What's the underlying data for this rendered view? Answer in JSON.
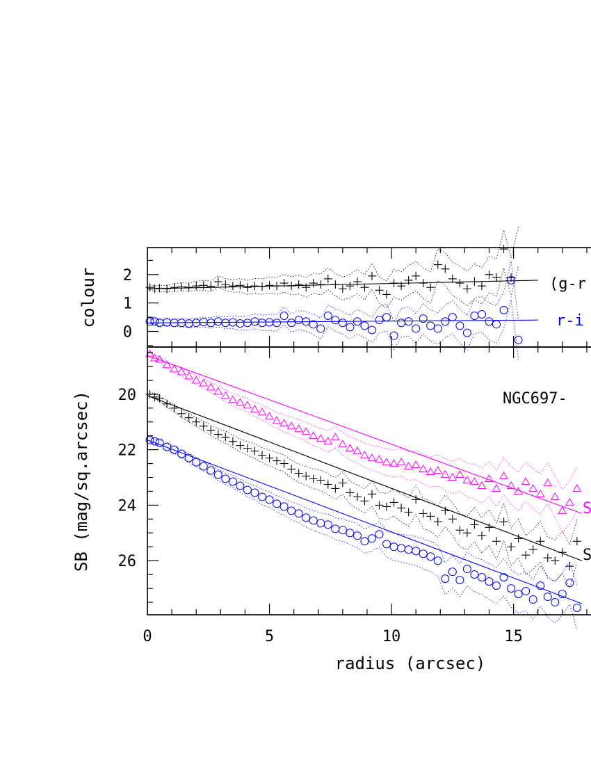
{
  "chart_data": {
    "type": "scatter",
    "xlabel": "radius (arcsec)",
    "xlim": [
      0,
      18.8
    ],
    "xticks": [
      0,
      5,
      10,
      15
    ],
    "top_panel": {
      "ylabel": "colour",
      "ylim": [
        -0.55,
        2.95
      ],
      "yticks": [
        0,
        1,
        2
      ],
      "labels": {
        "g_r": "(g-r",
        "r_i": "r-i"
      },
      "series": [
        {
          "name": "g-r",
          "color": "#000000",
          "marker": "cross",
          "fit": [
            [
              0,
              1.5
            ],
            [
              16,
              1.8
            ]
          ],
          "x": [
            0.1,
            0.3,
            0.5,
            0.8,
            1.1,
            1.4,
            1.7,
            2.0,
            2.3,
            2.6,
            2.9,
            3.2,
            3.5,
            3.8,
            4.1,
            4.4,
            4.7,
            5.0,
            5.3,
            5.6,
            5.9,
            6.2,
            6.5,
            6.8,
            7.1,
            7.4,
            7.7,
            8.0,
            8.3,
            8.6,
            8.9,
            9.2,
            9.5,
            9.8,
            10.1,
            10.4,
            10.7,
            11.0,
            11.3,
            11.6,
            11.9,
            12.2,
            12.5,
            12.8,
            13.1,
            13.4,
            13.7,
            14.0,
            14.3,
            14.6,
            14.9,
            15.2
          ],
          "y": [
            1.55,
            1.5,
            1.52,
            1.5,
            1.55,
            1.57,
            1.55,
            1.6,
            1.62,
            1.58,
            1.75,
            1.65,
            1.6,
            1.62,
            1.55,
            1.6,
            1.58,
            1.62,
            1.6,
            1.7,
            1.6,
            1.65,
            1.55,
            1.7,
            1.65,
            1.85,
            1.65,
            1.5,
            1.6,
            1.75,
            1.55,
            1.95,
            1.45,
            1.3,
            1.7,
            1.6,
            1.8,
            1.95,
            1.7,
            1.55,
            2.35,
            2.2,
            1.85,
            1.7,
            1.5,
            1.75,
            1.6,
            2.0,
            1.9,
            2.9,
            1.9,
            3.0
          ]
        },
        {
          "name": "r-i",
          "color": "#0000ff",
          "marker": "circle",
          "fit": [
            [
              0,
              0.3
            ],
            [
              16,
              0.4
            ]
          ],
          "x": [
            0.1,
            0.3,
            0.5,
            0.8,
            1.1,
            1.4,
            1.7,
            2.0,
            2.3,
            2.6,
            2.9,
            3.2,
            3.5,
            3.8,
            4.1,
            4.4,
            4.7,
            5.0,
            5.3,
            5.6,
            5.9,
            6.2,
            6.5,
            6.8,
            7.1,
            7.4,
            7.7,
            8.0,
            8.3,
            8.6,
            8.9,
            9.2,
            9.5,
            9.8,
            10.1,
            10.4,
            10.7,
            11.0,
            11.3,
            11.6,
            11.9,
            12.2,
            12.5,
            12.8,
            13.1,
            13.4,
            13.7,
            14.0,
            14.3,
            14.6,
            14.9,
            15.2
          ],
          "y": [
            0.35,
            0.35,
            0.3,
            0.32,
            0.3,
            0.3,
            0.28,
            0.3,
            0.33,
            0.3,
            0.35,
            0.3,
            0.32,
            0.28,
            0.3,
            0.35,
            0.3,
            0.32,
            0.3,
            0.55,
            0.3,
            0.4,
            0.35,
            0.25,
            0.1,
            0.55,
            0.4,
            0.3,
            0.15,
            0.35,
            0.2,
            0.05,
            0.4,
            0.5,
            -0.15,
            0.3,
            0.35,
            0.1,
            0.45,
            0.2,
            0.1,
            0.35,
            0.5,
            0.2,
            -0.05,
            0.55,
            0.6,
            0.35,
            0.25,
            0.75,
            1.8,
            -0.3
          ]
        }
      ]
    },
    "bottom_panel": {
      "ylabel": "SB (mag/sq.arcsec)",
      "ylim": [
        27.95,
        18.3
      ],
      "yticks": [
        20,
        22,
        24,
        26
      ],
      "galaxy_label": "NGC697-",
      "series": [
        {
          "name": "g",
          "label": "S",
          "color": "#ff00ff",
          "marker": "triangle",
          "fit": [
            [
              0,
              18.6
            ],
            [
              17.8,
              24.3
            ]
          ],
          "x": [
            0.1,
            0.3,
            0.5,
            0.8,
            1.1,
            1.4,
            1.7,
            2.0,
            2.3,
            2.6,
            2.9,
            3.2,
            3.5,
            3.8,
            4.1,
            4.4,
            4.7,
            5.0,
            5.3,
            5.6,
            5.9,
            6.2,
            6.5,
            6.8,
            7.1,
            7.4,
            7.7,
            8.0,
            8.3,
            8.6,
            8.9,
            9.2,
            9.5,
            9.8,
            10.1,
            10.4,
            10.7,
            11.0,
            11.3,
            11.6,
            11.9,
            12.2,
            12.5,
            12.8,
            13.1,
            13.4,
            13.7,
            14.0,
            14.3,
            14.6,
            14.9,
            15.2,
            15.5,
            15.8,
            16.1,
            16.4,
            16.7,
            17.0,
            17.3,
            17.6
          ],
          "y": [
            18.55,
            18.7,
            18.75,
            18.95,
            19.1,
            19.2,
            19.35,
            19.5,
            19.6,
            19.75,
            19.9,
            20.05,
            20.2,
            20.3,
            20.4,
            20.55,
            20.65,
            20.8,
            20.95,
            21.05,
            21.15,
            21.25,
            21.35,
            21.5,
            21.6,
            21.7,
            21.55,
            21.8,
            21.95,
            22.05,
            22.2,
            22.3,
            22.35,
            22.45,
            22.5,
            22.45,
            22.6,
            22.55,
            22.7,
            22.8,
            22.75,
            22.9,
            23.0,
            22.9,
            23.1,
            23.15,
            23.3,
            23.05,
            23.4,
            22.95,
            23.3,
            23.5,
            23.15,
            23.4,
            23.6,
            23.2,
            23.7,
            24.2,
            23.9,
            23.4
          ]
        },
        {
          "name": "r",
          "label": "S",
          "color": "#000000",
          "marker": "cross",
          "fit": [
            [
              0,
              20.05
            ],
            [
              17.8,
              26.0
            ]
          ],
          "x": [
            0.1,
            0.3,
            0.5,
            0.8,
            1.1,
            1.4,
            1.7,
            2.0,
            2.3,
            2.6,
            2.9,
            3.2,
            3.5,
            3.8,
            4.1,
            4.4,
            4.7,
            5.0,
            5.3,
            5.6,
            5.9,
            6.2,
            6.5,
            6.8,
            7.1,
            7.4,
            7.7,
            8.0,
            8.3,
            8.6,
            8.9,
            9.2,
            9.5,
            9.8,
            10.1,
            10.4,
            10.7,
            11.0,
            11.3,
            11.6,
            11.9,
            12.2,
            12.5,
            12.8,
            13.1,
            13.4,
            13.7,
            14.0,
            14.3,
            14.6,
            14.9,
            15.2,
            15.5,
            15.8,
            16.1,
            16.4,
            16.7,
            17.0,
            17.3,
            17.6
          ],
          "y": [
            20.0,
            20.1,
            20.15,
            20.35,
            20.5,
            20.7,
            20.85,
            21.0,
            21.15,
            21.3,
            21.45,
            21.55,
            21.7,
            21.85,
            21.95,
            22.05,
            22.2,
            22.3,
            22.4,
            22.5,
            22.7,
            22.85,
            22.95,
            23.05,
            23.1,
            23.25,
            23.4,
            23.2,
            23.55,
            23.7,
            23.85,
            23.6,
            24.0,
            24.05,
            23.9,
            24.1,
            24.25,
            23.8,
            24.3,
            24.4,
            24.6,
            24.2,
            24.5,
            24.9,
            25.0,
            24.7,
            25.1,
            24.8,
            25.3,
            24.6,
            25.5,
            25.2,
            25.8,
            25.6,
            25.3,
            25.9,
            26.0,
            25.7,
            26.2,
            25.3
          ]
        },
        {
          "name": "i",
          "label": "",
          "color": "#0000ff",
          "marker": "circle",
          "fit": [
            [
              0,
              21.65
            ],
            [
              17.8,
              27.55
            ]
          ],
          "x": [
            0.1,
            0.3,
            0.5,
            0.8,
            1.1,
            1.4,
            1.7,
            2.0,
            2.3,
            2.6,
            2.9,
            3.2,
            3.5,
            3.8,
            4.1,
            4.4,
            4.7,
            5.0,
            5.3,
            5.6,
            5.9,
            6.2,
            6.5,
            6.8,
            7.1,
            7.4,
            7.7,
            8.0,
            8.3,
            8.6,
            8.9,
            9.2,
            9.5,
            9.8,
            10.1,
            10.4,
            10.7,
            11.0,
            11.3,
            11.6,
            11.9,
            12.2,
            12.5,
            12.8,
            13.1,
            13.4,
            13.7,
            14.0,
            14.3,
            14.6,
            14.9,
            15.2,
            15.5,
            15.8,
            16.1,
            16.4,
            16.7,
            17.0,
            17.3,
            17.6
          ],
          "y": [
            21.65,
            21.7,
            21.75,
            21.9,
            22.0,
            22.15,
            22.3,
            22.45,
            22.6,
            22.75,
            22.9,
            23.05,
            23.15,
            23.3,
            23.45,
            23.55,
            23.7,
            23.8,
            23.95,
            24.05,
            24.2,
            24.3,
            24.45,
            24.55,
            24.65,
            24.7,
            24.85,
            24.9,
            25.0,
            25.1,
            25.3,
            25.2,
            25.05,
            25.4,
            25.5,
            25.55,
            25.6,
            25.65,
            25.75,
            25.85,
            26.0,
            26.65,
            26.4,
            26.7,
            26.3,
            26.5,
            26.6,
            26.75,
            26.9,
            26.6,
            27.0,
            27.2,
            27.1,
            27.4,
            26.9,
            27.3,
            27.5,
            27.2,
            26.8,
            27.7
          ]
        }
      ]
    }
  }
}
